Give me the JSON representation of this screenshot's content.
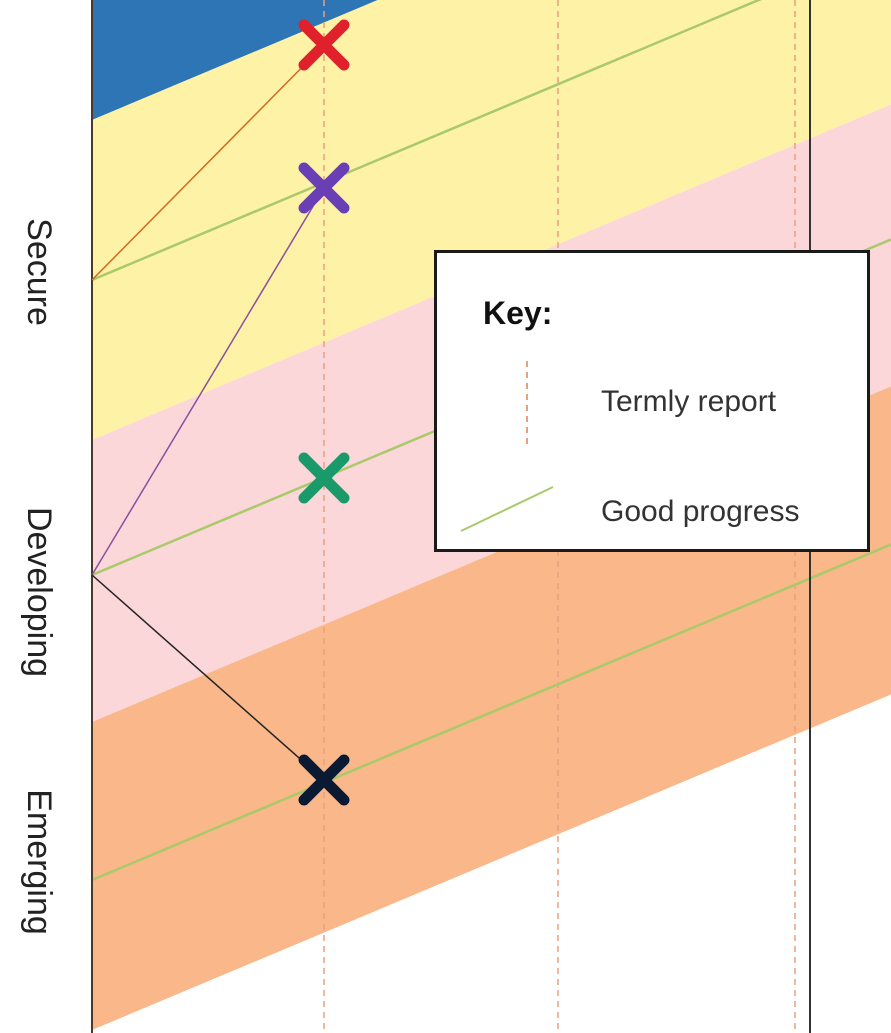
{
  "chart_data": {
    "type": "line",
    "title": "",
    "y_bands": [
      {
        "name": "Secure",
        "color": "#fdf2a6"
      },
      {
        "name": "Developing",
        "color": "#fbd7da"
      },
      {
        "name": "Emerging",
        "color": "#f9b78a"
      }
    ],
    "top_band_color": "#2e75b6",
    "x_reports": [
      0,
      1,
      2,
      3
    ],
    "markers": [
      {
        "color": "#e0202a",
        "start_level": "Secure",
        "x": 1
      },
      {
        "color": "#6a3fb5",
        "start_level": "Developing",
        "x": 1
      },
      {
        "color": "#1a9a6a",
        "start_level": "Developing",
        "x": 1
      },
      {
        "color": "#0b1a33",
        "start_level": "Developing",
        "x": 1
      }
    ],
    "good_progress_line_color": "#a9c96a",
    "termly_report_line_color": "#e8a080"
  },
  "legend": {
    "title": "Key:",
    "items": [
      {
        "label": "Termly  report",
        "symbol": "dashed-vertical",
        "color": "#e8a080"
      },
      {
        "label": "Good progress",
        "symbol": "diagonal-line",
        "color": "#a9c96a"
      }
    ]
  }
}
